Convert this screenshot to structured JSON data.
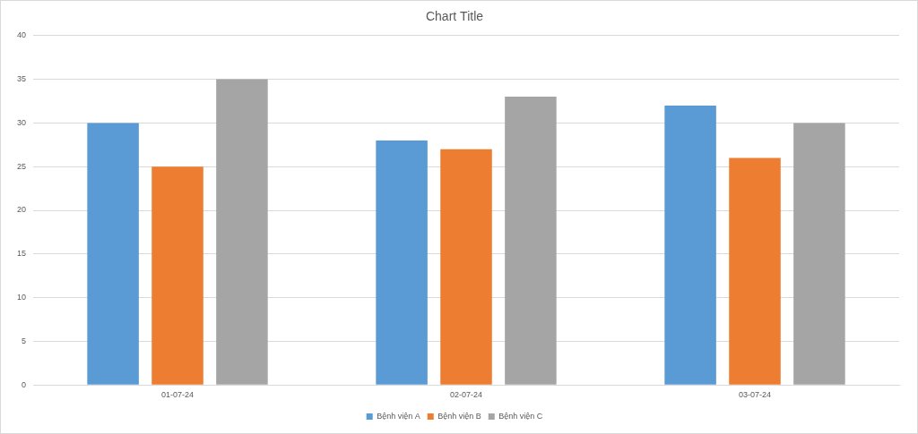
{
  "chart_data": {
    "type": "bar",
    "title": "Chart Title",
    "categories": [
      "01-07-24",
      "02-07-24",
      "03-07-24"
    ],
    "series": [
      {
        "name": "Bệnh viện A",
        "color": "#5b9bd5",
        "values": [
          30,
          28,
          32
        ]
      },
      {
        "name": "Bệnh viện B",
        "color": "#ed7d31",
        "values": [
          25,
          27,
          26
        ]
      },
      {
        "name": "Bệnh viện C",
        "color": "#a5a5a5",
        "values": [
          35,
          33,
          30
        ]
      }
    ],
    "ylim": [
      0,
      40
    ],
    "yticks": [
      0,
      5,
      10,
      15,
      20,
      25,
      30,
      35,
      40
    ],
    "grid": true,
    "legend": "bottom"
  }
}
